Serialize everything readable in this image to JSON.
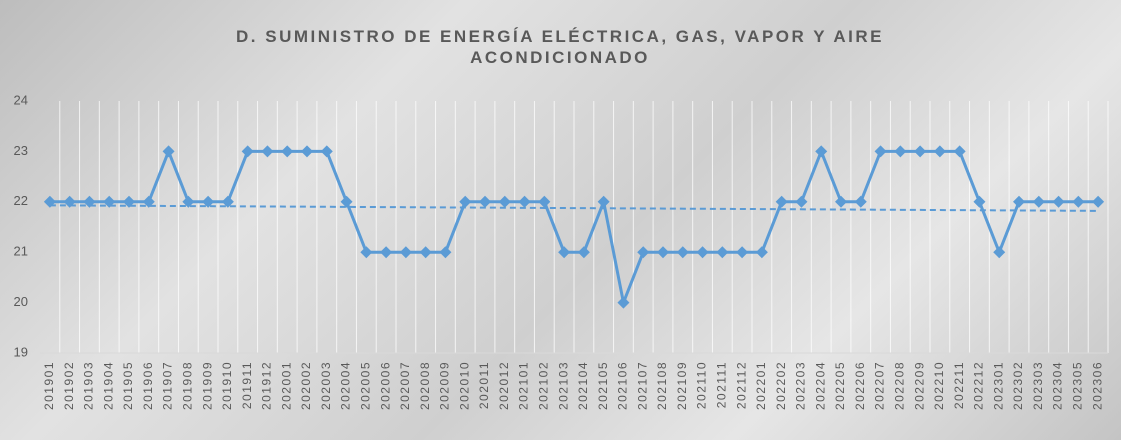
{
  "chart_data": {
    "type": "line",
    "title": "D. SUMINISTRO DE ENERGÍA ELÉCTRICA, GAS, VAPOR Y AIRE ACONDICIONADO",
    "categories": [
      "201901",
      "201902",
      "201903",
      "201904",
      "201905",
      "201906",
      "201907",
      "201908",
      "201909",
      "201910",
      "201911",
      "201912",
      "202001",
      "202002",
      "202003",
      "202004",
      "202005",
      "202006",
      "202007",
      "202008",
      "202009",
      "202010",
      "202011",
      "202012",
      "202101",
      "202102",
      "202103",
      "202104",
      "202105",
      "202106",
      "202107",
      "202108",
      "202109",
      "202110",
      "202111",
      "202112",
      "202201",
      "202202",
      "202203",
      "202204",
      "202205",
      "202206",
      "202207",
      "202208",
      "202209",
      "202210",
      "202211",
      "202212",
      "202301",
      "202302",
      "202303",
      "202304",
      "202305",
      "202306"
    ],
    "series": [
      {
        "color": "#5b9bd5",
        "values": [
          22,
          22,
          22,
          22,
          22,
          22,
          23,
          22,
          22,
          22,
          23,
          23,
          23,
          23,
          23,
          22,
          21,
          21,
          21,
          21,
          21,
          22,
          22,
          22,
          22,
          22,
          21,
          21,
          22,
          20,
          21,
          21,
          21,
          21,
          21,
          21,
          21,
          22,
          22,
          23,
          22,
          22,
          23,
          23,
          23,
          23,
          23,
          22,
          21,
          22,
          22,
          22,
          22,
          22
        ]
      }
    ],
    "trendline": [
      21.93,
      21.82
    ],
    "ylim": [
      19,
      24
    ],
    "yticks": [
      19,
      20,
      21,
      22,
      23,
      24
    ],
    "grid": true
  }
}
